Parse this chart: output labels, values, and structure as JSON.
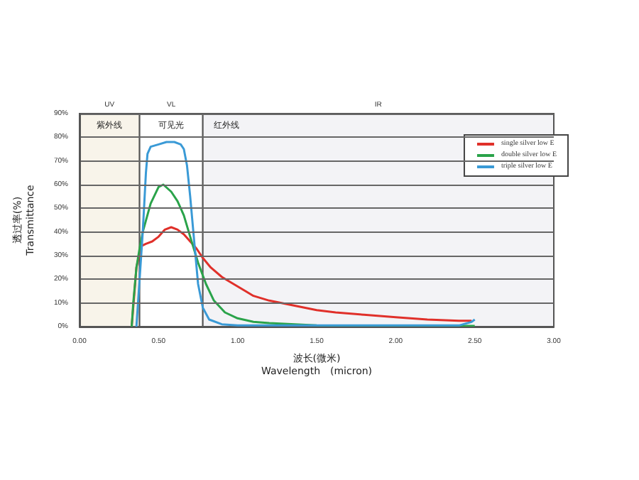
{
  "chart_data": {
    "type": "line",
    "xlabel": "波长(微米)\nWavelength　(micron)",
    "ylabel": "透过率(%)\nTransmittance",
    "xlim": [
      0,
      3
    ],
    "xticks": [
      {
        "value": 0,
        "label": "0.00"
      },
      {
        "value": 0.5,
        "label": "0.50"
      },
      {
        "value": 1,
        "label": "1.00"
      },
      {
        "value": 1.5,
        "label": "1.50"
      },
      {
        "value": 2,
        "label": "2.00"
      },
      {
        "value": 2.5,
        "label": "2.50"
      },
      {
        "value": 3,
        "label": "3.00"
      }
    ],
    "ylim": [
      0,
      90
    ],
    "yticks": [
      {
        "value": 0,
        "label": "0%"
      },
      {
        "value": 10,
        "label": "10%"
      },
      {
        "value": 20,
        "label": "20%"
      },
      {
        "value": 30,
        "label": "30%"
      },
      {
        "value": 40,
        "label": "40%"
      },
      {
        "value": 50,
        "label": "50%"
      },
      {
        "value": 60,
        "label": "60%"
      },
      {
        "value": 70,
        "label": "70%"
      },
      {
        "value": 80,
        "label": "80%"
      },
      {
        "value": 90,
        "label": "90%"
      }
    ],
    "grid": "y",
    "legend": "top right",
    "marker": "none",
    "line_style": "solid",
    "bands": [
      {
        "axis": "x",
        "from": 0,
        "to": 0.38,
        "label": "UV",
        "color": "#f8f4ea"
      },
      {
        "axis": "x",
        "from": 0.38,
        "to": 0.78,
        "label": "VL",
        "color": "#ffffff"
      },
      {
        "axis": "x",
        "from": 0.78,
        "to": 3,
        "label": "IR",
        "color": "#f3f3f6"
      }
    ],
    "annotations": [
      "紫外线",
      "可见光",
      "红外线"
    ],
    "series": [
      {
        "name": "single silver low E",
        "color": "#e0302a",
        "x": [
          0.33,
          0.36,
          0.39,
          0.42,
          0.46,
          0.5,
          0.54,
          0.58,
          0.62,
          0.66,
          0.7,
          0.74,
          0.78,
          0.83,
          0.9,
          0.95,
          1.05,
          1.1,
          1.2,
          1.35,
          1.5,
          1.62,
          1.8,
          2.0,
          2.2,
          2.4,
          2.48
        ],
        "values": [
          0,
          25,
          34,
          35,
          36,
          38,
          41,
          42,
          41,
          39,
          36,
          33,
          29,
          25,
          21,
          19,
          15,
          13,
          11,
          9,
          7,
          6,
          5,
          4,
          3,
          2.5,
          2.5
        ]
      },
      {
        "name": "double silver low E",
        "color": "#2aa34a",
        "x": [
          0.33,
          0.34,
          0.36,
          0.38,
          0.4,
          0.45,
          0.5,
          0.53,
          0.58,
          0.62,
          0.66,
          0.7,
          0.75,
          0.8,
          0.85,
          0.92,
          1.0,
          1.1,
          1.2,
          1.5,
          2.0,
          2.5
        ],
        "values": [
          0,
          10,
          25,
          33,
          40,
          52,
          59,
          60,
          57,
          53,
          47,
          38,
          27,
          18,
          11,
          6,
          3.5,
          2,
          1.5,
          0.5,
          0.3,
          0.3
        ]
      },
      {
        "name": "triple silver low E",
        "color": "#3a9ad6",
        "x": [
          0.36,
          0.38,
          0.4,
          0.42,
          0.43,
          0.45,
          0.5,
          0.55,
          0.6,
          0.64,
          0.66,
          0.68,
          0.7,
          0.72,
          0.75,
          0.78,
          0.82,
          0.9,
          1.0,
          1.5,
          2.0,
          2.4,
          2.48,
          2.5
        ],
        "values": [
          0,
          20,
          40,
          65,
          73,
          76,
          77,
          78,
          78,
          77,
          75,
          68,
          55,
          40,
          18,
          8,
          3,
          1,
          0.5,
          0.5,
          0.5,
          0.5,
          2,
          3
        ]
      }
    ]
  }
}
